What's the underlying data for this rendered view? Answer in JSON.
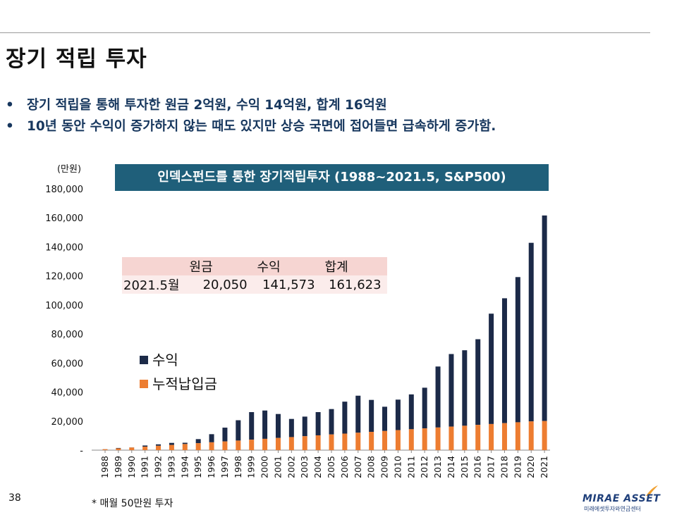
{
  "header": {
    "title": "장기 적립 투자"
  },
  "bullets": [
    {
      "marker": "•",
      "text": "장기 적립을 통해 투자한 원금 2억원, 수익 14억원, 합계 16억원"
    },
    {
      "marker": "•",
      "text": "10년 동안 수익이 증가하지 않는 때도 있지만 상승 국면에 접어들면 급속하게 증가함."
    }
  ],
  "summary_table": {
    "headers": [
      "원금",
      "수익",
      "합계"
    ],
    "row_label": "2021.5월",
    "values": [
      "20,050",
      "141,573",
      "161,623"
    ]
  },
  "footer": {
    "page_number": "38",
    "note": "* 매월 50만원 투자",
    "logo_text": "MIRAE ASSET",
    "logo_sub": "미래에셋투자와연금센터"
  },
  "colors": {
    "profit": "#1c2a48",
    "principal": "#ed7d31",
    "title_bar": "#1f5f7a",
    "bullet_text": "#17375e"
  },
  "chart_data": {
    "type": "bar",
    "stacked": true,
    "title": "인덱스펀드를 통한 장기적립투자 (1988~2021.5, S&P500)",
    "ylabel": "(만원)",
    "ylim": [
      0,
      180000
    ],
    "yticks": [
      0,
      20000,
      40000,
      60000,
      80000,
      100000,
      120000,
      140000,
      160000,
      180000
    ],
    "ytick_labels": [
      "-",
      "20,000",
      "40,000",
      "60,000",
      "80,000",
      "100,000",
      "120,000",
      "140,000",
      "160,000",
      "180,000"
    ],
    "categories": [
      "1988",
      "1989",
      "1990",
      "1991",
      "1992",
      "1993",
      "1994",
      "1995",
      "1996",
      "1997",
      "1998",
      "1999",
      "2000",
      "2001",
      "2002",
      "2003",
      "2004",
      "2005",
      "2006",
      "2007",
      "2008",
      "2009",
      "2010",
      "2011",
      "2012",
      "2013",
      "2014",
      "2015",
      "2016",
      "2017",
      "2018",
      "2019",
      "2020",
      "2021"
    ],
    "series": [
      {
        "name": "누적납입금",
        "color": "#ed7d31",
        "values": [
          600,
          1200,
          1800,
          2400,
          3000,
          3600,
          4200,
          4800,
          5400,
          6000,
          6600,
          7200,
          7800,
          8400,
          9000,
          9600,
          10200,
          10800,
          11400,
          12000,
          12600,
          13200,
          13800,
          14400,
          15000,
          15600,
          16200,
          16800,
          17400,
          18000,
          18600,
          19200,
          19800,
          20050
        ]
      },
      {
        "name": "수익",
        "color": "#1c2a48",
        "values": [
          100,
          300,
          100,
          800,
          1000,
          1400,
          900,
          2800,
          5600,
          9500,
          14000,
          19000,
          19500,
          16500,
          12500,
          13500,
          16000,
          17500,
          22000,
          25500,
          22000,
          16700,
          21000,
          24000,
          28000,
          42000,
          50000,
          52000,
          59000,
          76000,
          86000,
          100000,
          123000,
          141573
        ]
      }
    ],
    "legend": {
      "position": "left-middle"
    }
  }
}
